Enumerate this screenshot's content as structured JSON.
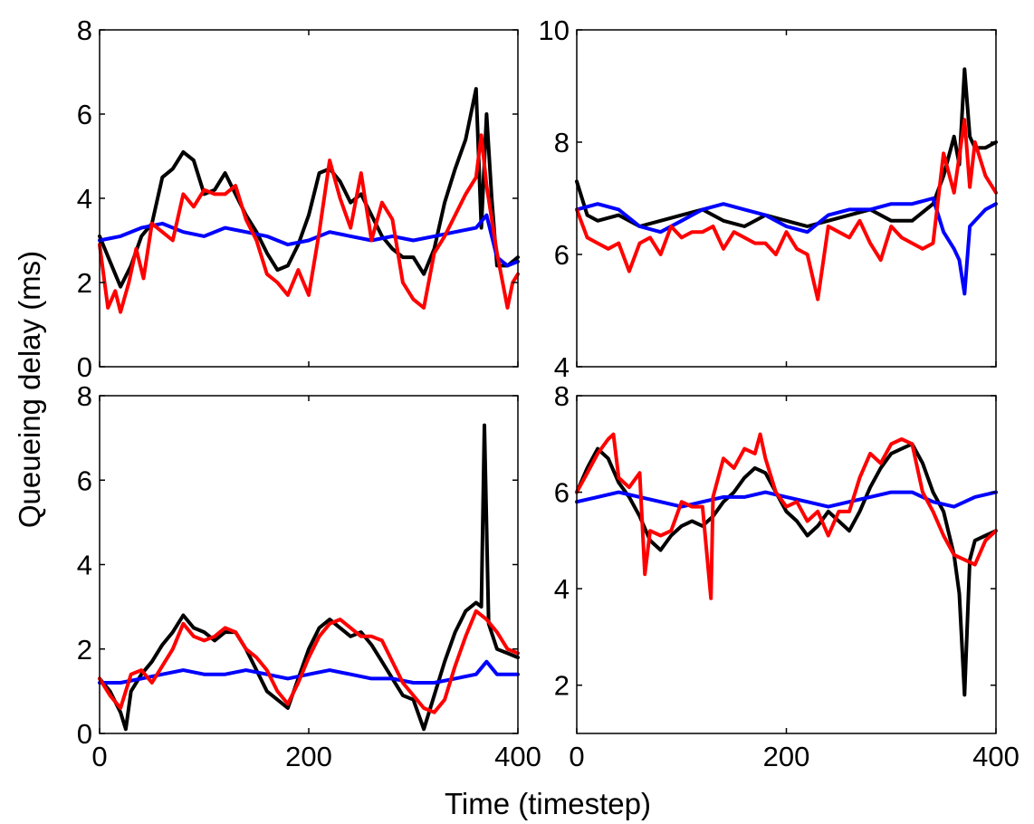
{
  "figure": {
    "xlabel": "Time (timestep)",
    "ylabel": "Queueing delay (ms)"
  },
  "series_colors": [
    "#000000",
    "#0000ff",
    "#ff0000"
  ],
  "chart_data": [
    {
      "type": "line",
      "xlim": [
        0,
        400
      ],
      "ylim": [
        0,
        8
      ],
      "xticks": [
        0,
        200,
        400
      ],
      "yticks": [
        0,
        2,
        4,
        6,
        8
      ],
      "show_xtick_labels": false,
      "grid": false,
      "series": [
        {
          "color": "#000000",
          "x": [
            0,
            10,
            20,
            30,
            40,
            50,
            60,
            70,
            80,
            90,
            100,
            110,
            120,
            130,
            140,
            150,
            160,
            170,
            180,
            190,
            200,
            210,
            220,
            230,
            240,
            250,
            260,
            270,
            280,
            290,
            300,
            310,
            320,
            330,
            340,
            350,
            360,
            365,
            370,
            375,
            380,
            390,
            400
          ],
          "values": [
            3.1,
            2.5,
            1.9,
            2.4,
            3.1,
            3.4,
            4.5,
            4.7,
            5.1,
            4.9,
            4.1,
            4.2,
            4.6,
            4.1,
            3.6,
            3.2,
            2.7,
            2.3,
            2.4,
            2.9,
            3.6,
            4.6,
            4.7,
            4.4,
            3.9,
            4.1,
            3.6,
            3.1,
            2.8,
            2.6,
            2.6,
            2.2,
            2.8,
            3.9,
            4.7,
            5.4,
            6.6,
            3.3,
            6.0,
            4.0,
            2.4,
            2.4,
            2.6
          ]
        },
        {
          "color": "#0000ff",
          "x": [
            0,
            20,
            40,
            60,
            80,
            100,
            120,
            140,
            160,
            180,
            200,
            220,
            240,
            260,
            280,
            300,
            320,
            340,
            360,
            370,
            380,
            390,
            400
          ],
          "values": [
            3.0,
            3.1,
            3.3,
            3.4,
            3.2,
            3.1,
            3.3,
            3.2,
            3.1,
            2.9,
            3.0,
            3.2,
            3.1,
            3.0,
            3.1,
            3.0,
            3.1,
            3.2,
            3.3,
            3.6,
            2.6,
            2.4,
            2.5
          ]
        },
        {
          "color": "#ff0000",
          "x": [
            0,
            8,
            15,
            20,
            28,
            35,
            42,
            50,
            60,
            70,
            80,
            90,
            100,
            110,
            120,
            130,
            140,
            150,
            160,
            170,
            180,
            190,
            200,
            210,
            220,
            230,
            240,
            250,
            260,
            270,
            280,
            290,
            300,
            310,
            320,
            330,
            340,
            350,
            360,
            365,
            370,
            380,
            390,
            395,
            400
          ],
          "values": [
            2.9,
            1.4,
            1.8,
            1.3,
            2.0,
            2.8,
            2.1,
            3.4,
            3.2,
            3.0,
            4.1,
            3.8,
            4.2,
            4.1,
            4.1,
            4.3,
            3.5,
            3.0,
            2.2,
            2.0,
            1.7,
            2.3,
            1.7,
            3.2,
            4.9,
            4.0,
            3.3,
            4.6,
            3.0,
            3.9,
            3.5,
            2.0,
            1.6,
            1.4,
            2.7,
            3.1,
            3.6,
            4.1,
            4.5,
            5.5,
            4.3,
            2.7,
            1.4,
            2.0,
            2.2
          ]
        }
      ]
    },
    {
      "type": "line",
      "xlim": [
        0,
        400
      ],
      "ylim": [
        4,
        10
      ],
      "xticks": [
        0,
        200,
        400
      ],
      "yticks": [
        4,
        6,
        8,
        10
      ],
      "show_xtick_labels": false,
      "grid": false,
      "series": [
        {
          "color": "#000000",
          "x": [
            0,
            10,
            20,
            40,
            60,
            80,
            100,
            120,
            140,
            160,
            180,
            200,
            220,
            240,
            260,
            280,
            300,
            320,
            340,
            350,
            360,
            365,
            370,
            375,
            380,
            390,
            400
          ],
          "values": [
            7.3,
            6.7,
            6.6,
            6.7,
            6.5,
            6.6,
            6.7,
            6.8,
            6.6,
            6.5,
            6.7,
            6.6,
            6.5,
            6.6,
            6.7,
            6.8,
            6.6,
            6.6,
            6.9,
            7.4,
            8.1,
            7.6,
            9.3,
            8.1,
            7.9,
            7.9,
            8.0
          ]
        },
        {
          "color": "#0000ff",
          "x": [
            0,
            20,
            40,
            60,
            80,
            100,
            120,
            140,
            160,
            180,
            200,
            220,
            240,
            260,
            280,
            300,
            320,
            340,
            350,
            360,
            365,
            370,
            375,
            380,
            390,
            400
          ],
          "values": [
            6.8,
            6.9,
            6.8,
            6.5,
            6.4,
            6.6,
            6.8,
            6.9,
            6.8,
            6.7,
            6.5,
            6.4,
            6.7,
            6.8,
            6.8,
            6.9,
            6.9,
            7.0,
            6.4,
            6.1,
            5.9,
            5.3,
            6.5,
            6.6,
            6.8,
            6.9
          ]
        },
        {
          "color": "#ff0000",
          "x": [
            0,
            10,
            20,
            30,
            40,
            50,
            60,
            70,
            80,
            90,
            100,
            110,
            120,
            130,
            140,
            150,
            160,
            170,
            180,
            190,
            200,
            210,
            220,
            230,
            240,
            250,
            260,
            270,
            280,
            290,
            300,
            310,
            320,
            330,
            340,
            350,
            360,
            370,
            375,
            380,
            390,
            400
          ],
          "values": [
            6.8,
            6.3,
            6.2,
            6.1,
            6.2,
            5.7,
            6.2,
            6.3,
            6.0,
            6.5,
            6.3,
            6.4,
            6.4,
            6.5,
            6.1,
            6.4,
            6.3,
            6.2,
            6.2,
            6.0,
            6.4,
            6.1,
            6.0,
            5.2,
            6.5,
            6.4,
            6.3,
            6.6,
            6.2,
            5.9,
            6.5,
            6.3,
            6.2,
            6.1,
            6.2,
            7.8,
            7.1,
            8.4,
            7.2,
            8.0,
            7.4,
            7.1
          ]
        }
      ]
    },
    {
      "type": "line",
      "xlim": [
        0,
        400
      ],
      "ylim": [
        0,
        8
      ],
      "xticks": [
        0,
        200,
        400
      ],
      "yticks": [
        0,
        2,
        4,
        6,
        8
      ],
      "show_xtick_labels": true,
      "grid": false,
      "series": [
        {
          "color": "#000000",
          "x": [
            0,
            10,
            20,
            25,
            30,
            40,
            50,
            60,
            70,
            80,
            90,
            100,
            110,
            120,
            130,
            140,
            150,
            160,
            170,
            180,
            190,
            200,
            210,
            220,
            230,
            240,
            250,
            260,
            270,
            280,
            290,
            300,
            310,
            320,
            330,
            340,
            350,
            360,
            365,
            368,
            372,
            380,
            390,
            400
          ],
          "values": [
            1.3,
            1.0,
            0.5,
            0.1,
            1.0,
            1.4,
            1.7,
            2.1,
            2.4,
            2.8,
            2.5,
            2.4,
            2.2,
            2.4,
            2.4,
            2.0,
            1.5,
            1.0,
            0.8,
            0.6,
            1.3,
            2.0,
            2.5,
            2.7,
            2.5,
            2.3,
            2.4,
            2.1,
            1.7,
            1.3,
            0.9,
            0.8,
            0.1,
            0.9,
            1.7,
            2.4,
            2.9,
            3.1,
            3.0,
            7.3,
            2.6,
            2.0,
            1.9,
            1.8
          ]
        },
        {
          "color": "#0000ff",
          "x": [
            0,
            20,
            40,
            60,
            80,
            100,
            120,
            140,
            160,
            180,
            200,
            220,
            240,
            260,
            280,
            300,
            320,
            340,
            360,
            370,
            380,
            400
          ],
          "values": [
            1.2,
            1.2,
            1.3,
            1.4,
            1.5,
            1.4,
            1.4,
            1.5,
            1.4,
            1.3,
            1.4,
            1.5,
            1.4,
            1.3,
            1.3,
            1.2,
            1.2,
            1.3,
            1.4,
            1.7,
            1.4,
            1.4
          ]
        },
        {
          "color": "#ff0000",
          "x": [
            0,
            10,
            20,
            30,
            40,
            50,
            60,
            70,
            80,
            90,
            100,
            110,
            120,
            130,
            140,
            150,
            160,
            170,
            180,
            190,
            200,
            210,
            220,
            230,
            240,
            250,
            260,
            270,
            280,
            290,
            300,
            310,
            320,
            330,
            340,
            350,
            360,
            370,
            380,
            390,
            400
          ],
          "values": [
            1.3,
            0.9,
            0.6,
            1.4,
            1.5,
            1.2,
            1.6,
            2.0,
            2.6,
            2.3,
            2.2,
            2.3,
            2.5,
            2.4,
            2.0,
            1.8,
            1.5,
            1.0,
            0.7,
            1.2,
            1.8,
            2.3,
            2.6,
            2.7,
            2.5,
            2.3,
            2.3,
            2.2,
            1.7,
            1.2,
            0.9,
            0.6,
            0.5,
            0.8,
            1.6,
            2.3,
            2.9,
            2.7,
            2.4,
            2.0,
            1.9
          ]
        }
      ]
    },
    {
      "type": "line",
      "xlim": [
        0,
        400
      ],
      "ylim": [
        1,
        8
      ],
      "xticks": [
        0,
        200,
        400
      ],
      "yticks": [
        2,
        4,
        6,
        8
      ],
      "show_xtick_labels": true,
      "grid": false,
      "series": [
        {
          "color": "#000000",
          "x": [
            0,
            10,
            20,
            30,
            40,
            50,
            60,
            70,
            80,
            90,
            100,
            110,
            120,
            130,
            140,
            150,
            160,
            170,
            180,
            190,
            200,
            210,
            220,
            230,
            240,
            250,
            260,
            270,
            280,
            290,
            300,
            310,
            320,
            330,
            340,
            350,
            360,
            365,
            370,
            375,
            380,
            390,
            400
          ],
          "values": [
            6.0,
            6.5,
            6.9,
            6.7,
            6.2,
            5.9,
            5.5,
            5.0,
            4.8,
            5.1,
            5.3,
            5.4,
            5.3,
            5.5,
            5.8,
            6.0,
            6.3,
            6.5,
            6.4,
            6.0,
            5.6,
            5.4,
            5.1,
            5.3,
            5.6,
            5.4,
            5.2,
            5.6,
            6.1,
            6.5,
            6.8,
            6.9,
            7.0,
            6.6,
            6.0,
            5.6,
            4.7,
            3.9,
            1.8,
            4.6,
            5.0,
            5.1,
            5.2
          ]
        },
        {
          "color": "#0000ff",
          "x": [
            0,
            20,
            40,
            60,
            80,
            100,
            120,
            140,
            160,
            180,
            200,
            220,
            240,
            260,
            280,
            300,
            320,
            340,
            360,
            380,
            400
          ],
          "values": [
            5.8,
            5.9,
            6.0,
            5.9,
            5.8,
            5.7,
            5.8,
            5.9,
            5.9,
            6.0,
            5.9,
            5.8,
            5.7,
            5.8,
            5.9,
            6.0,
            6.0,
            5.8,
            5.7,
            5.9,
            6.0
          ]
        },
        {
          "color": "#ff0000",
          "x": [
            0,
            10,
            20,
            30,
            35,
            40,
            50,
            60,
            65,
            70,
            80,
            90,
            100,
            110,
            120,
            128,
            130,
            140,
            150,
            160,
            170,
            175,
            180,
            190,
            200,
            210,
            220,
            230,
            240,
            250,
            260,
            270,
            280,
            290,
            300,
            310,
            320,
            330,
            340,
            350,
            360,
            370,
            380,
            390,
            400
          ],
          "values": [
            6.0,
            6.4,
            6.8,
            7.1,
            7.2,
            6.3,
            6.1,
            6.4,
            4.3,
            5.2,
            5.1,
            5.2,
            5.8,
            5.7,
            5.7,
            3.8,
            5.9,
            6.7,
            6.5,
            6.9,
            6.8,
            7.2,
            6.7,
            6.0,
            5.7,
            5.8,
            5.4,
            5.6,
            5.1,
            5.6,
            5.6,
            6.3,
            6.8,
            6.6,
            7.0,
            7.1,
            7.0,
            6.0,
            5.6,
            5.1,
            4.7,
            4.6,
            4.5,
            5.0,
            5.2
          ]
        }
      ]
    }
  ]
}
